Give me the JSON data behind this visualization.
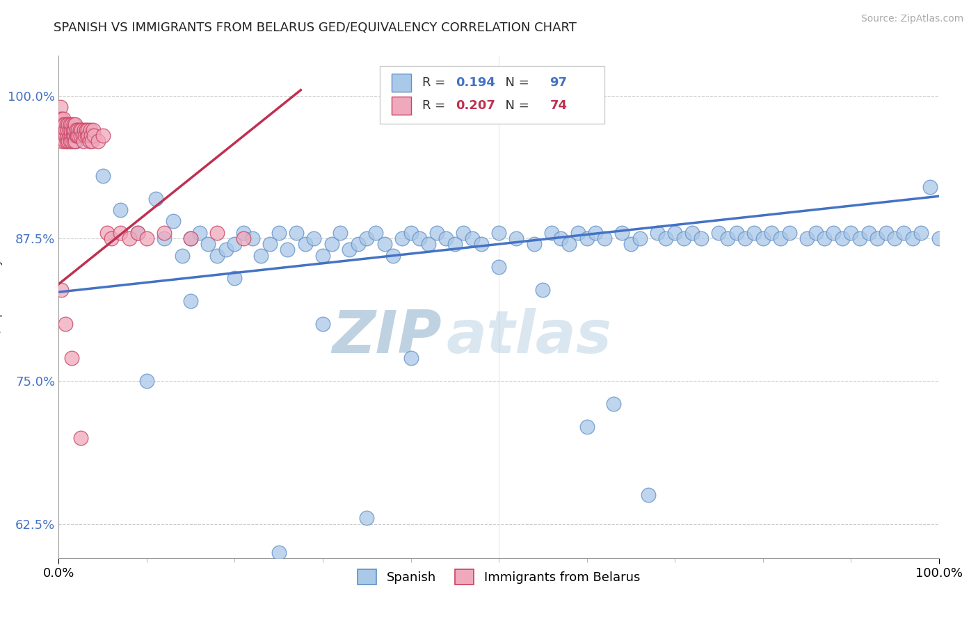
{
  "title": "SPANISH VS IMMIGRANTS FROM BELARUS GED/EQUIVALENCY CORRELATION CHART",
  "source": "Source: ZipAtlas.com",
  "ylabel": "GED/Equivalency",
  "xlim": [
    0.0,
    1.0
  ],
  "ylim": [
    0.595,
    1.035
  ],
  "yticks": [
    0.625,
    0.75,
    0.875,
    1.0
  ],
  "ytick_labels": [
    "62.5%",
    "75.0%",
    "87.5%",
    "100.0%"
  ],
  "xtick_labels": [
    "0.0%",
    "100.0%"
  ],
  "legend_blue_r": "0.194",
  "legend_blue_n": "97",
  "legend_pink_r": "0.207",
  "legend_pink_n": "74",
  "legend_label_blue": "Spanish",
  "legend_label_pink": "Immigrants from Belarus",
  "blue_color": "#aac8e8",
  "pink_color": "#f0a8bc",
  "blue_edge_color": "#6090c8",
  "pink_edge_color": "#c84060",
  "blue_line_color": "#4472C4",
  "pink_line_color": "#c03050",
  "watermark_zip": "ZIP",
  "watermark_atlas": "atlas",
  "background_color": "#ffffff",
  "blue_scatter_x": [
    0.02,
    0.05,
    0.07,
    0.09,
    0.11,
    0.12,
    0.13,
    0.14,
    0.15,
    0.16,
    0.17,
    0.18,
    0.19,
    0.2,
    0.21,
    0.22,
    0.23,
    0.24,
    0.25,
    0.26,
    0.27,
    0.28,
    0.29,
    0.3,
    0.31,
    0.32,
    0.33,
    0.34,
    0.35,
    0.36,
    0.37,
    0.38,
    0.39,
    0.4,
    0.41,
    0.42,
    0.43,
    0.44,
    0.45,
    0.46,
    0.47,
    0.48,
    0.5,
    0.52,
    0.54,
    0.55,
    0.56,
    0.57,
    0.58,
    0.59,
    0.6,
    0.61,
    0.62,
    0.63,
    0.64,
    0.65,
    0.66,
    0.67,
    0.68,
    0.69,
    0.7,
    0.71,
    0.72,
    0.73,
    0.75,
    0.76,
    0.77,
    0.78,
    0.79,
    0.8,
    0.81,
    0.82,
    0.83,
    0.85,
    0.86,
    0.87,
    0.88,
    0.89,
    0.9,
    0.91,
    0.92,
    0.93,
    0.94,
    0.95,
    0.96,
    0.97,
    0.98,
    0.99,
    1.0,
    0.1,
    0.3,
    0.5,
    0.4,
    0.2,
    0.6,
    0.35,
    0.25,
    0.15
  ],
  "blue_scatter_y": [
    0.96,
    0.93,
    0.9,
    0.88,
    0.91,
    0.875,
    0.89,
    0.86,
    0.875,
    0.88,
    0.87,
    0.86,
    0.865,
    0.87,
    0.88,
    0.875,
    0.86,
    0.87,
    0.88,
    0.865,
    0.88,
    0.87,
    0.875,
    0.86,
    0.87,
    0.88,
    0.865,
    0.87,
    0.875,
    0.88,
    0.87,
    0.86,
    0.875,
    0.88,
    0.875,
    0.87,
    0.88,
    0.875,
    0.87,
    0.88,
    0.875,
    0.87,
    0.88,
    0.875,
    0.87,
    0.83,
    0.88,
    0.875,
    0.87,
    0.88,
    0.875,
    0.88,
    0.875,
    0.73,
    0.88,
    0.87,
    0.875,
    0.65,
    0.88,
    0.875,
    0.88,
    0.875,
    0.88,
    0.875,
    0.88,
    0.875,
    0.88,
    0.875,
    0.88,
    0.875,
    0.88,
    0.875,
    0.88,
    0.875,
    0.88,
    0.875,
    0.88,
    0.875,
    0.88,
    0.875,
    0.88,
    0.875,
    0.88,
    0.875,
    0.88,
    0.875,
    0.88,
    0.92,
    0.875,
    0.75,
    0.8,
    0.85,
    0.77,
    0.84,
    0.71,
    0.63,
    0.6,
    0.82
  ],
  "pink_scatter_x": [
    0.001,
    0.002,
    0.003,
    0.003,
    0.004,
    0.004,
    0.005,
    0.005,
    0.006,
    0.006,
    0.007,
    0.007,
    0.008,
    0.008,
    0.009,
    0.009,
    0.01,
    0.01,
    0.011,
    0.011,
    0.012,
    0.012,
    0.013,
    0.013,
    0.014,
    0.014,
    0.015,
    0.015,
    0.016,
    0.016,
    0.017,
    0.017,
    0.018,
    0.018,
    0.019,
    0.019,
    0.02,
    0.02,
    0.021,
    0.022,
    0.023,
    0.024,
    0.025,
    0.026,
    0.027,
    0.028,
    0.029,
    0.03,
    0.031,
    0.032,
    0.033,
    0.034,
    0.035,
    0.036,
    0.037,
    0.038,
    0.039,
    0.04,
    0.045,
    0.05,
    0.055,
    0.06,
    0.07,
    0.08,
    0.09,
    0.1,
    0.12,
    0.15,
    0.18,
    0.21,
    0.003,
    0.008,
    0.015,
    0.025
  ],
  "pink_scatter_y": [
    0.98,
    0.99,
    0.97,
    0.98,
    0.96,
    0.975,
    0.97,
    0.98,
    0.965,
    0.975,
    0.96,
    0.975,
    0.965,
    0.97,
    0.96,
    0.975,
    0.965,
    0.97,
    0.96,
    0.975,
    0.965,
    0.97,
    0.96,
    0.975,
    0.965,
    0.97,
    0.96,
    0.975,
    0.965,
    0.97,
    0.96,
    0.975,
    0.965,
    0.97,
    0.96,
    0.975,
    0.965,
    0.97,
    0.965,
    0.97,
    0.965,
    0.97,
    0.965,
    0.97,
    0.965,
    0.96,
    0.97,
    0.965,
    0.97,
    0.965,
    0.97,
    0.965,
    0.96,
    0.97,
    0.965,
    0.96,
    0.97,
    0.965,
    0.96,
    0.965,
    0.88,
    0.875,
    0.88,
    0.875,
    0.88,
    0.875,
    0.88,
    0.875,
    0.88,
    0.875,
    0.83,
    0.8,
    0.77,
    0.7
  ],
  "blue_trendline_x": [
    0.0,
    1.0
  ],
  "blue_trendline_y": [
    0.828,
    0.912
  ],
  "pink_trendline_x": [
    0.0,
    0.275
  ],
  "pink_trendline_y": [
    0.835,
    1.005
  ]
}
